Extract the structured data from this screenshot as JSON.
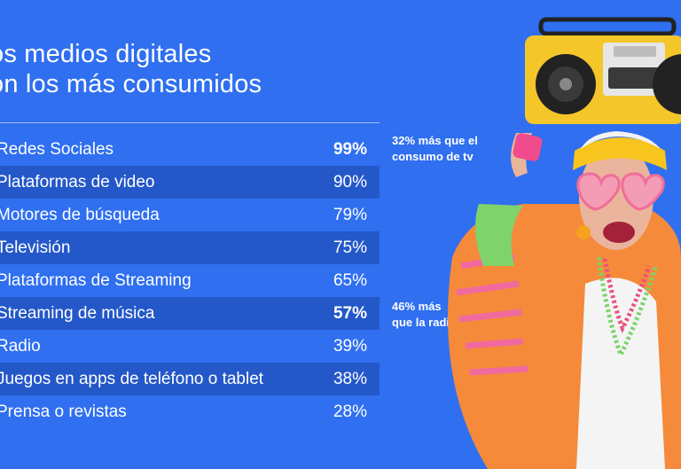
{
  "title": {
    "line1": "os medios digitales",
    "line2": "on los más consumidos"
  },
  "chart_data": {
    "type": "table",
    "title": "os medios digitales on los más consumidos",
    "rows": [
      {
        "label": "Redes Sociales",
        "value": 99,
        "display": "99%",
        "bold": true
      },
      {
        "label": "Plataformas de video",
        "value": 90,
        "display": "90%",
        "bold": false
      },
      {
        "label": "Motores de búsqueda",
        "value": 79,
        "display": "79%",
        "bold": false
      },
      {
        "label": "Televisión",
        "value": 75,
        "display": "75%",
        "bold": false
      },
      {
        "label": "Plataformas de Streaming",
        "value": 65,
        "display": "65%",
        "bold": false
      },
      {
        "label": "Streaming de música",
        "value": 57,
        "display": "57%",
        "bold": true
      },
      {
        "label": "Radio",
        "value": 39,
        "display": "39%",
        "bold": false
      },
      {
        "label": "Juegos en apps de teléfono o tablet",
        "value": 38,
        "display": "38%",
        "bold": false
      },
      {
        "label": "Prensa o revistas",
        "value": 28,
        "display": "28%",
        "bold": false
      }
    ],
    "annotations": [
      {
        "line1": "32% más que el",
        "line2": "consumo de tv",
        "row": 0
      },
      {
        "line1": "46% más",
        "line2": "que la radio",
        "row": 5
      }
    ]
  },
  "colors": {
    "background": "#2f6ff0",
    "row_alt": "#2458c9",
    "text": "#ffffff",
    "boombox": "#f5c62a",
    "headband": "#f7c51e",
    "glasses": "#f08aa8",
    "jacket": "#f58a3a"
  },
  "photo": {
    "icon": "woman-with-boombox-photo"
  }
}
